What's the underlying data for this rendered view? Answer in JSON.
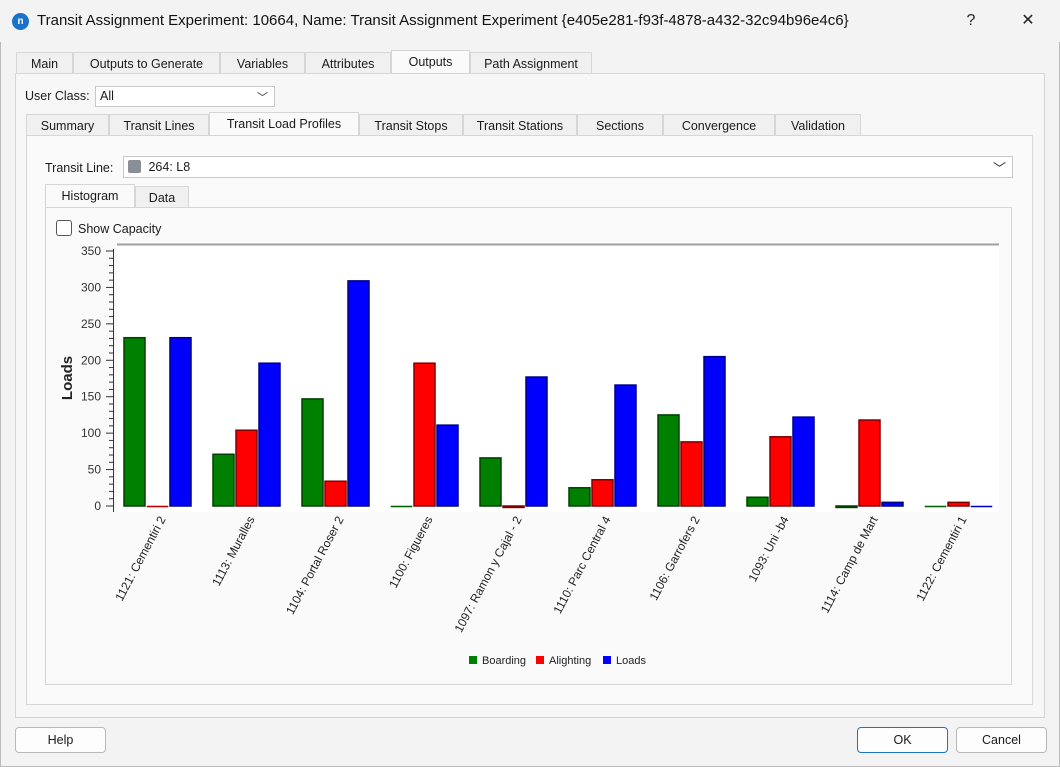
{
  "window": {
    "title": "Transit Assignment Experiment: 10664, Name: Transit Assignment Experiment  {e405e281-f93f-4878-a432-32c94b96e4c6}",
    "help_glyph": "?",
    "close_glyph": "✕",
    "app_icon": "n"
  },
  "main_tabs": [
    "Main",
    "Outputs to Generate",
    "Variables",
    "Attributes",
    "Outputs",
    "Path Assignment"
  ],
  "main_active": "Outputs",
  "user_class": {
    "label": "User Class:",
    "value": "All"
  },
  "output_tabs": [
    "Summary",
    "Transit Lines",
    "Transit Load Profiles",
    "Transit Stops",
    "Transit Stations",
    "Sections",
    "Convergence",
    "Validation"
  ],
  "output_active": "Transit Load Profiles",
  "transit_line": {
    "label": "Transit Line:",
    "value": "264: L8",
    "icon": "bus-icon"
  },
  "view_tabs": [
    "Histogram",
    "Data"
  ],
  "view_active": "Histogram",
  "show_capacity": {
    "label": "Show Capacity",
    "checked": false
  },
  "chart_data": {
    "type": "bar",
    "ylabel": "Loads",
    "ylim": [
      0,
      350
    ],
    "yticks": [
      0,
      50,
      100,
      150,
      200,
      250,
      300,
      350
    ],
    "categories": [
      "1121: Cementiri 2",
      "1113: Muralles",
      "1104: Portal Roser 2",
      "1100: Figueres",
      "1097: Ramon y Cajal - 2",
      "1110: Parc Central 4",
      "1106: Garrofers 2",
      "1093: Uni -b4",
      "1114: Camp de Mart",
      "1122: Cementiri 1"
    ],
    "series": [
      {
        "name": "Boarding",
        "color": "#008000",
        "values": [
          231,
          71,
          147,
          0,
          66,
          25,
          125,
          12,
          -2,
          0
        ]
      },
      {
        "name": "Alighting",
        "color": "#ff0000",
        "values": [
          0,
          104,
          34,
          196,
          -2,
          36,
          88,
          95,
          118,
          5
        ]
      },
      {
        "name": "Loads",
        "color": "#0000ff",
        "values": [
          231,
          196,
          309,
          111,
          177,
          166,
          205,
          122,
          5,
          0
        ]
      }
    ],
    "legend": "bottom"
  },
  "buttons": {
    "help": "Help",
    "ok": "OK",
    "cancel": "Cancel"
  }
}
